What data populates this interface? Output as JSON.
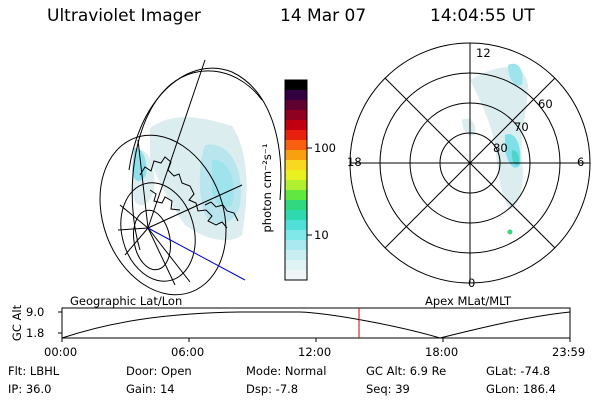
{
  "header": {
    "instrument": "Ultraviolet Imager",
    "date": "14 Mar 07",
    "time": "14:04:55 UT"
  },
  "colorbar": {
    "unit_label": "photon cm⁻²s⁻¹",
    "ticks": [
      "100",
      "10"
    ]
  },
  "left_panel": {
    "label": "Geographic Lat/Lon"
  },
  "right_panel": {
    "label": "Apex MLat/MLT",
    "mlt_labels": {
      "top": "12",
      "left": "18",
      "right": "6",
      "bottom": "0"
    },
    "lat_labels": [
      "60",
      "70",
      "80"
    ]
  },
  "altitude_plot": {
    "ylabel": "GC Alt",
    "yticks": [
      "9.0",
      "1.8"
    ],
    "xticks": [
      "00:00",
      "06:00",
      "12:00",
      "18:00",
      "23:59"
    ],
    "current_time_hours": 14.08
  },
  "footer": {
    "filter": "Flt: LBHL",
    "ip": "IP: 36.0",
    "door": "Door: Open",
    "gain": "Gain: 14",
    "mode": "Mode: Normal",
    "dsp": "Dsp:   -7.8",
    "gc_alt": "GC Alt: 6.9 Re",
    "seq": "Seq: 39",
    "glat": "GLat: -74.8",
    "glon": "GLon: 186.4"
  },
  "colors": {
    "aurora_faint": "#cfe6ea",
    "aurora_cyan": "#7fe0ea",
    "aurora_green": "#35d86a",
    "time_marker": "#cc0000",
    "boundary_line": "#0000cc"
  }
}
